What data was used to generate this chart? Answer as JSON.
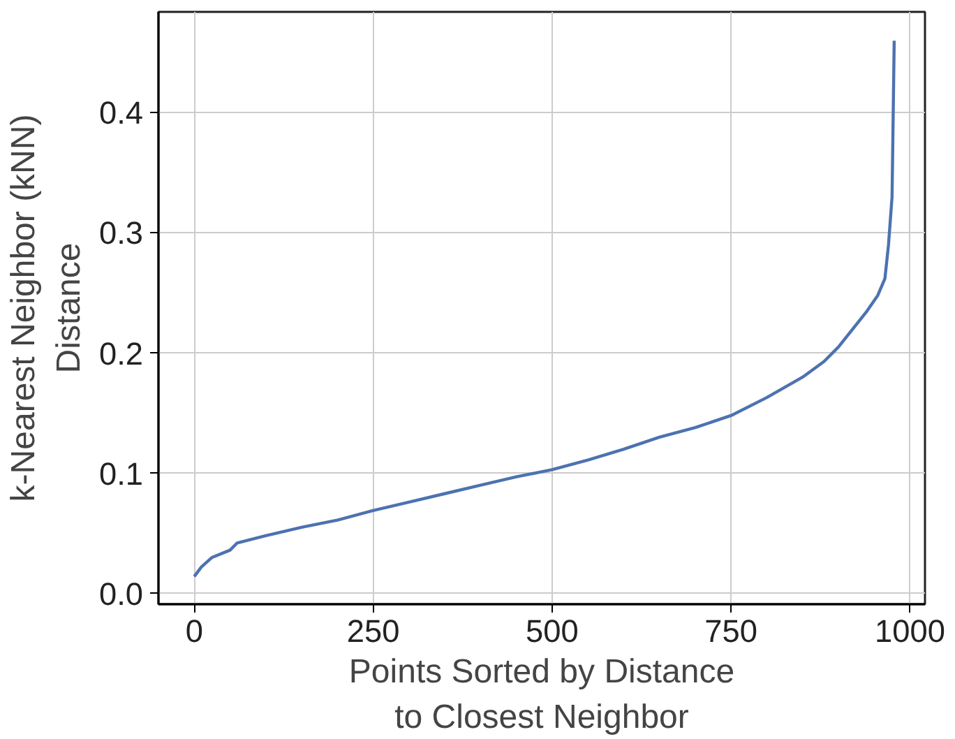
{
  "chart_data": {
    "type": "line",
    "xlabel": "Points Sorted by Distance\nto Closest Neighbor",
    "ylabel": "k-Nearest Neighbor (kNN)\nDistance",
    "x": [
      0,
      10,
      25,
      50,
      60,
      100,
      150,
      200,
      250,
      300,
      350,
      400,
      450,
      500,
      550,
      600,
      650,
      700,
      750,
      800,
      850,
      880,
      900,
      920,
      940,
      955,
      965,
      970,
      975,
      978
    ],
    "series": [
      {
        "color": "#4c72b0",
        "values": [
          0.014,
          0.022,
          0.03,
          0.036,
          0.042,
          0.048,
          0.055,
          0.061,
          0.069,
          0.076,
          0.083,
          0.09,
          0.097,
          0.103,
          0.111,
          0.12,
          0.13,
          0.138,
          0.148,
          0.163,
          0.18,
          0.193,
          0.205,
          0.22,
          0.235,
          0.248,
          0.262,
          0.29,
          0.33,
          0.46
        ]
      }
    ],
    "xlim": [
      -50,
      1021
    ],
    "ylim": [
      -0.009,
      0.484
    ],
    "xticks": [
      0,
      250,
      500,
      750,
      1000
    ],
    "yticks": [
      {
        "value": 0,
        "label": "0.0"
      },
      0.1,
      0.2,
      0.3,
      0.4
    ],
    "grid": true,
    "marker": "none",
    "line_style": "solid"
  }
}
